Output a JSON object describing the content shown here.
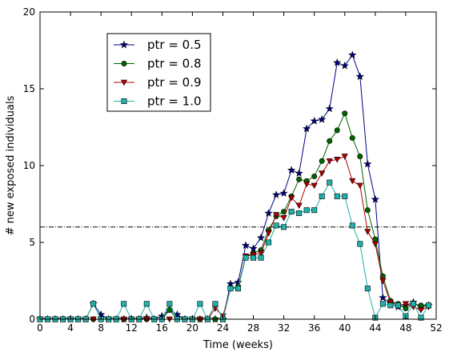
{
  "chart_data": {
    "type": "line",
    "xlabel": "Time (weeks)",
    "ylabel": "# new exposed individuals",
    "xlim": [
      0,
      52
    ],
    "ylim": [
      0,
      20
    ],
    "xticks": [
      "0",
      "4",
      "8",
      "12",
      "16",
      "20",
      "24",
      "28",
      "32",
      "36",
      "40",
      "44",
      "48",
      "52"
    ],
    "yticks": [
      "0",
      "5",
      "10",
      "15",
      "20"
    ],
    "x": [
      0,
      1,
      2,
      3,
      4,
      5,
      6,
      7,
      8,
      9,
      10,
      11,
      12,
      13,
      14,
      15,
      16,
      17,
      18,
      19,
      20,
      21,
      22,
      23,
      24,
      25,
      26,
      27,
      28,
      29,
      30,
      31,
      32,
      33,
      34,
      35,
      36,
      37,
      38,
      39,
      40,
      41,
      42,
      43,
      44,
      45,
      46,
      47,
      48,
      49,
      50,
      51
    ],
    "threshold": 6,
    "legend_position": "upper-left",
    "grid": false,
    "series": [
      {
        "name": "ptr = 0.5",
        "color": "#00008b",
        "marker": "star",
        "values": [
          0,
          0,
          0,
          0,
          0,
          0,
          0,
          1,
          0.3,
          0,
          0,
          0,
          0,
          0,
          0.1,
          0,
          0.2,
          0.6,
          0.3,
          0,
          0,
          0,
          0,
          0,
          0,
          2.3,
          2.4,
          4.8,
          4.6,
          5.3,
          6.9,
          8.1,
          8.2,
          9.7,
          9.5,
          12.4,
          12.9,
          13,
          13.7,
          16.7,
          16.5,
          17.2,
          15.8,
          10.1,
          7.8,
          1.4,
          1,
          0.8,
          0.9,
          1.1,
          0.8,
          0.9
        ]
      },
      {
        "name": "ptr = 0.8",
        "color": "#006400",
        "marker": "circle",
        "values": [
          0,
          0,
          0,
          0,
          0,
          0,
          0,
          0,
          0,
          0,
          0,
          0,
          0,
          0,
          0,
          0,
          0,
          0.6,
          0,
          0,
          0,
          0,
          0,
          0,
          0,
          2,
          2.1,
          4.1,
          4.3,
          4.5,
          5.8,
          6.7,
          7,
          8,
          9.1,
          9,
          9.3,
          10.3,
          11.6,
          12.3,
          13.4,
          11.8,
          10.6,
          7.1,
          5.2,
          2.8,
          1.2,
          1,
          0.7,
          1,
          0.9,
          0.9
        ]
      },
      {
        "name": "ptr = 0.9",
        "color": "#b30000",
        "marker": "triangle-down",
        "values": [
          0,
          0,
          0,
          0,
          0,
          0,
          0,
          0,
          0,
          0,
          0,
          0,
          0,
          0,
          0,
          0,
          0,
          0,
          0,
          0,
          0,
          0,
          0,
          0.7,
          0.2,
          2,
          2,
          4.1,
          4.2,
          4.3,
          5.6,
          6.8,
          6.6,
          7.9,
          7.4,
          8.8,
          8.7,
          9.5,
          10.3,
          10.4,
          10.6,
          9,
          8.7,
          5.7,
          4.9,
          2.5,
          1.1,
          0.9,
          1,
          0.8,
          0.6,
          0.8
        ]
      },
      {
        "name": "ptr = 1.0",
        "color": "#20b2aa",
        "marker": "square",
        "values": [
          0,
          0,
          0,
          0,
          0,
          0,
          0,
          1,
          0,
          0,
          0,
          1,
          0,
          0,
          1,
          0,
          0,
          1,
          0,
          0,
          0,
          1,
          0,
          1,
          0,
          2,
          2,
          4,
          4,
          4,
          5,
          6.1,
          6,
          7,
          6.9,
          7.1,
          7.1,
          8,
          8.9,
          8,
          8,
          6.1,
          4.9,
          2,
          0.1,
          1,
          0.9,
          0.9,
          0.2,
          1,
          0.1,
          0.9
        ]
      }
    ]
  }
}
